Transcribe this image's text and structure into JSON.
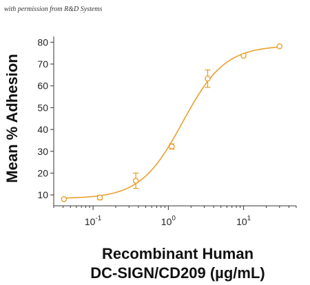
{
  "credit": "with permission from R&D Systems",
  "chart_data": {
    "type": "scatter",
    "title": "",
    "xlabel_line1": "Recombinant Human",
    "xlabel_line2": "DC-SIGN/CD209 (µg/mL)",
    "ylabel": "Mean % Adhesion",
    "x_scale": "log",
    "xlim": [
      0.03,
      50
    ],
    "ylim": [
      5,
      82
    ],
    "x_ticks": [
      0.1,
      1,
      10
    ],
    "x_tick_labels": [
      {
        "base": "10",
        "exp": "-1"
      },
      {
        "base": "10",
        "exp": "0"
      },
      {
        "base": "10",
        "exp": "1"
      }
    ],
    "y_ticks": [
      10,
      20,
      30,
      40,
      50,
      60,
      70,
      80
    ],
    "y_tick_labels": [
      "10",
      "20",
      "30",
      "40",
      "50",
      "60",
      "70",
      "80"
    ],
    "color": "#E8A02E",
    "grid": false,
    "legend": "none",
    "points": [
      {
        "x": 0.041,
        "y": 8.1,
        "err": 0.3
      },
      {
        "x": 0.123,
        "y": 8.8,
        "err": 1.0
      },
      {
        "x": 0.37,
        "y": 16.5,
        "err": 3.5
      },
      {
        "x": 1.11,
        "y": 32.2,
        "err": 1.2
      },
      {
        "x": 3.33,
        "y": 63.3,
        "err": 4.0
      },
      {
        "x": 10.0,
        "y": 73.8,
        "err": 0.5
      },
      {
        "x": 30.0,
        "y": 78.1,
        "err": 0.3
      }
    ],
    "fit": {
      "bottom": 8.3,
      "top": 78.5,
      "ec50": 1.55,
      "hill": 1.55
    }
  }
}
